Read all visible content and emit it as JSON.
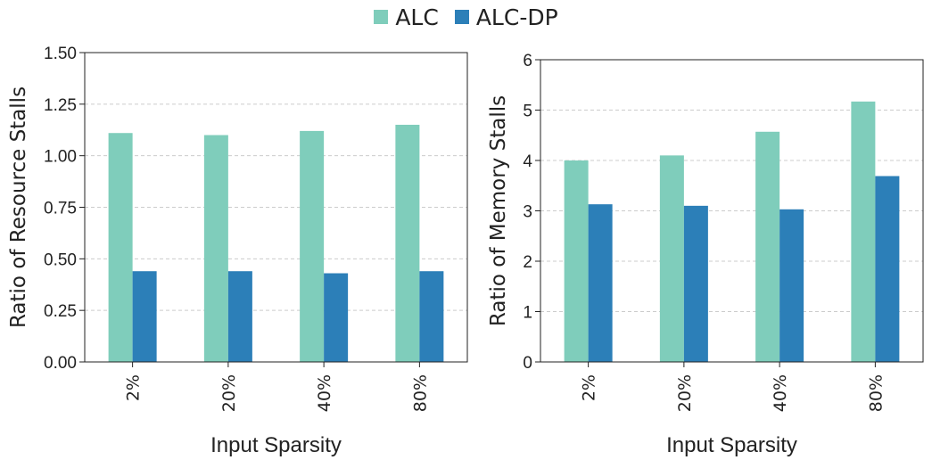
{
  "legend": [
    {
      "label": "ALC",
      "color": "#7fcdbb"
    },
    {
      "label": "ALC-DP",
      "color": "#2c7fb8"
    }
  ],
  "chart_data": [
    {
      "type": "bar",
      "categories": [
        "2%",
        "20%",
        "40%",
        "80%"
      ],
      "series": [
        {
          "name": "ALC",
          "values": [
            1.11,
            1.1,
            1.12,
            1.15
          ]
        },
        {
          "name": "ALC-DP",
          "values": [
            0.44,
            0.44,
            0.43,
            0.44
          ]
        }
      ],
      "title": "",
      "xlabel": "Input Sparsity",
      "ylabel": "Ratio of Resource Stalls",
      "ylim": [
        0,
        1.5
      ],
      "yticks": [
        "0.00",
        "0.25",
        "0.50",
        "0.75",
        "1.00",
        "1.25",
        "1.50"
      ],
      "grid": "horizontal dashed",
      "legend": "top-center"
    },
    {
      "type": "bar",
      "categories": [
        "2%",
        "20%",
        "40%",
        "80%"
      ],
      "series": [
        {
          "name": "ALC",
          "values": [
            4.0,
            4.1,
            4.57,
            5.17
          ]
        },
        {
          "name": "ALC-DP",
          "values": [
            3.13,
            3.1,
            3.03,
            3.69
          ]
        }
      ],
      "title": "",
      "xlabel": "Input Sparsity",
      "ylabel": "Ratio of Memory Stalls",
      "ylim": [
        0,
        6
      ],
      "yticks": [
        "0",
        "1",
        "2",
        "3",
        "4",
        "5",
        "6"
      ],
      "grid": "horizontal dashed",
      "legend": "top-center"
    }
  ]
}
